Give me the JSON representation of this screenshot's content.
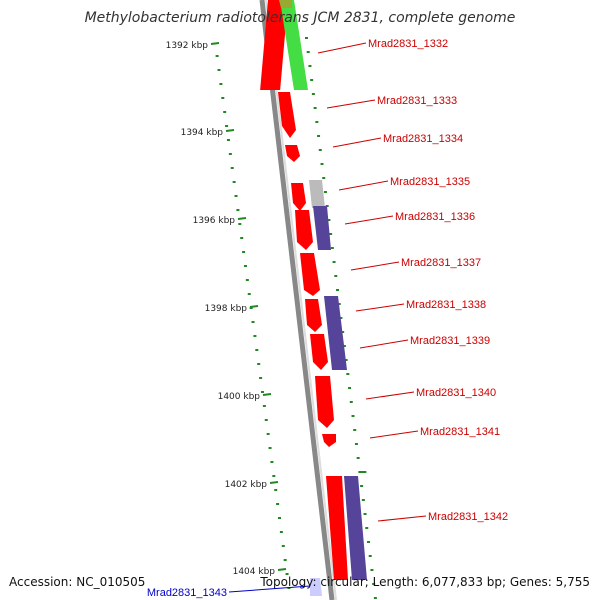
{
  "title": "Methylobacterium radiotolerans JCM 2831, complete genome",
  "accession_text": "Accession: NC_010505",
  "summary_text": "Topology: circular; Length: 6,077,833 bp; Genes: 5,755",
  "scale_labels": [
    "1392 kbp",
    "1394 kbp",
    "1396 kbp",
    "1398 kbp",
    "1400 kbp",
    "1402 kbp",
    "1404 kbp"
  ],
  "gene_labels": [
    {
      "id": "Mrad2831_1332",
      "color": "#cc0000"
    },
    {
      "id": "Mrad2831_1333",
      "color": "#cc0000"
    },
    {
      "id": "Mrad2831_1334",
      "color": "#cc0000"
    },
    {
      "id": "Mrad2831_1335",
      "color": "#cc0000"
    },
    {
      "id": "Mrad2831_1336",
      "color": "#cc0000"
    },
    {
      "id": "Mrad2831_1337",
      "color": "#cc0000"
    },
    {
      "id": "Mrad2831_1338",
      "color": "#cc0000"
    },
    {
      "id": "Mrad2831_1339",
      "color": "#cc0000"
    },
    {
      "id": "Mrad2831_1340",
      "color": "#cc0000"
    },
    {
      "id": "Mrad2831_1341",
      "color": "#cc0000"
    },
    {
      "id": "Mrad2831_1342",
      "color": "#cc0000"
    },
    {
      "id": "Mrad2831_1343",
      "color": "#0000cc"
    }
  ],
  "colors": {
    "cds": "#ff0000",
    "trna_like_green": "#44dd44",
    "gray_feature": "#bbbbbb",
    "purple_feature": "#55449a",
    "backbone": "#777777",
    "gc_dots": "#228822"
  }
}
